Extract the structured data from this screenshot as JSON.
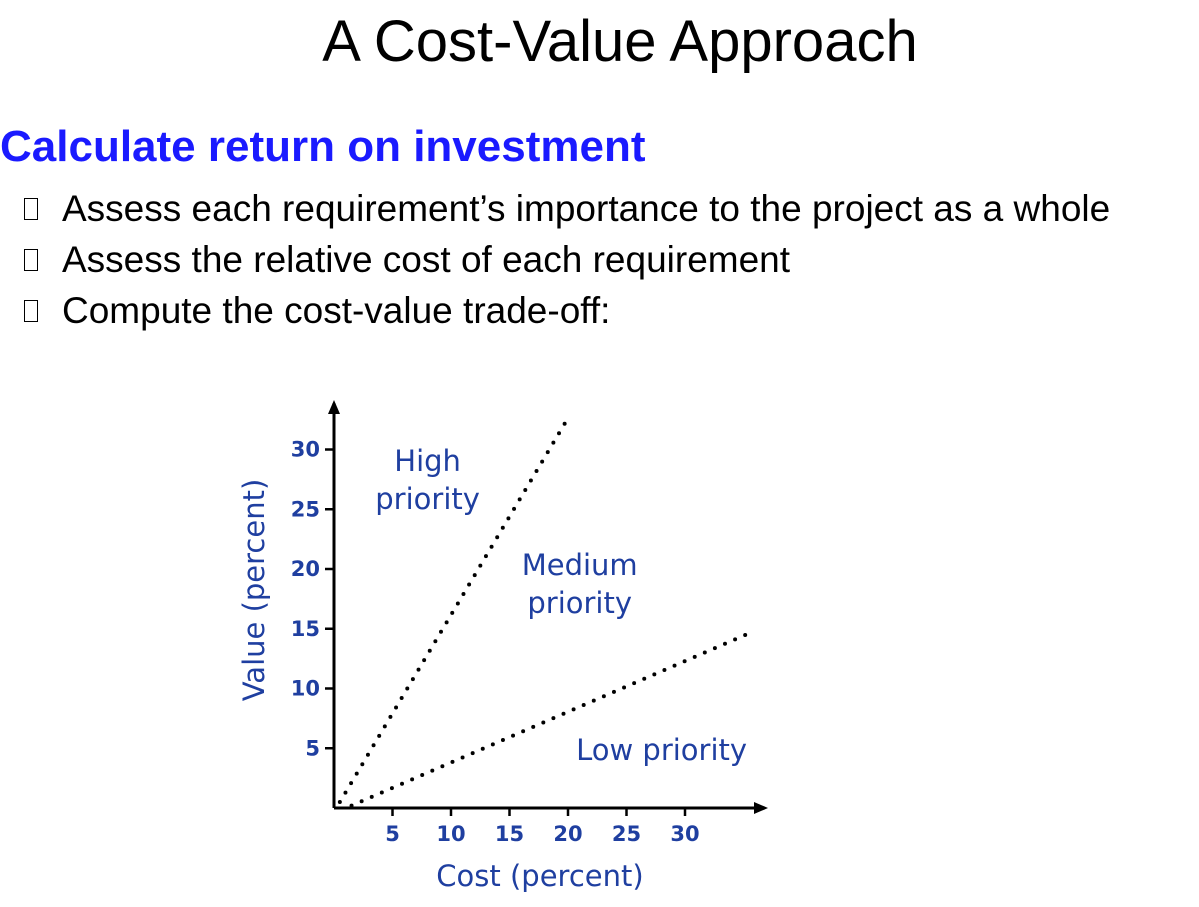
{
  "slide": {
    "title": "A Cost-Value Approach",
    "heading": "Calculate return on investment",
    "bullets": [
      "Assess each requirement’s importance to the project as a whole",
      "Assess the relative cost of each requirement",
      "Compute the cost-value trade-off:"
    ]
  },
  "colors": {
    "heading": "#1a1aff",
    "chart_text": "#1f3fa0",
    "axis": "#000000"
  },
  "chart_data": {
    "type": "line",
    "xlabel": "Cost (percent)",
    "ylabel": "Value (percent)",
    "x_ticks": [
      5,
      10,
      15,
      20,
      25,
      30
    ],
    "y_ticks": [
      5,
      10,
      15,
      20,
      25,
      30
    ],
    "xlim": [
      0,
      36
    ],
    "ylim": [
      0,
      33
    ],
    "grid": false,
    "series": [
      {
        "style": "dotted",
        "x": [
          0.5,
          19.8
        ],
        "y": [
          0.5,
          32.3
        ]
      },
      {
        "style": "dotted",
        "x": [
          1.5,
          35.2
        ],
        "y": [
          0.2,
          14.5
        ]
      }
    ],
    "region_labels": [
      {
        "lines": [
          "High",
          "priority"
        ],
        "x": 8,
        "y": 28.2
      },
      {
        "lines": [
          "Medium",
          "priority"
        ],
        "x": 21,
        "y": 19.5
      },
      {
        "lines": [
          "Low priority"
        ],
        "x": 28,
        "y": 4
      }
    ]
  }
}
